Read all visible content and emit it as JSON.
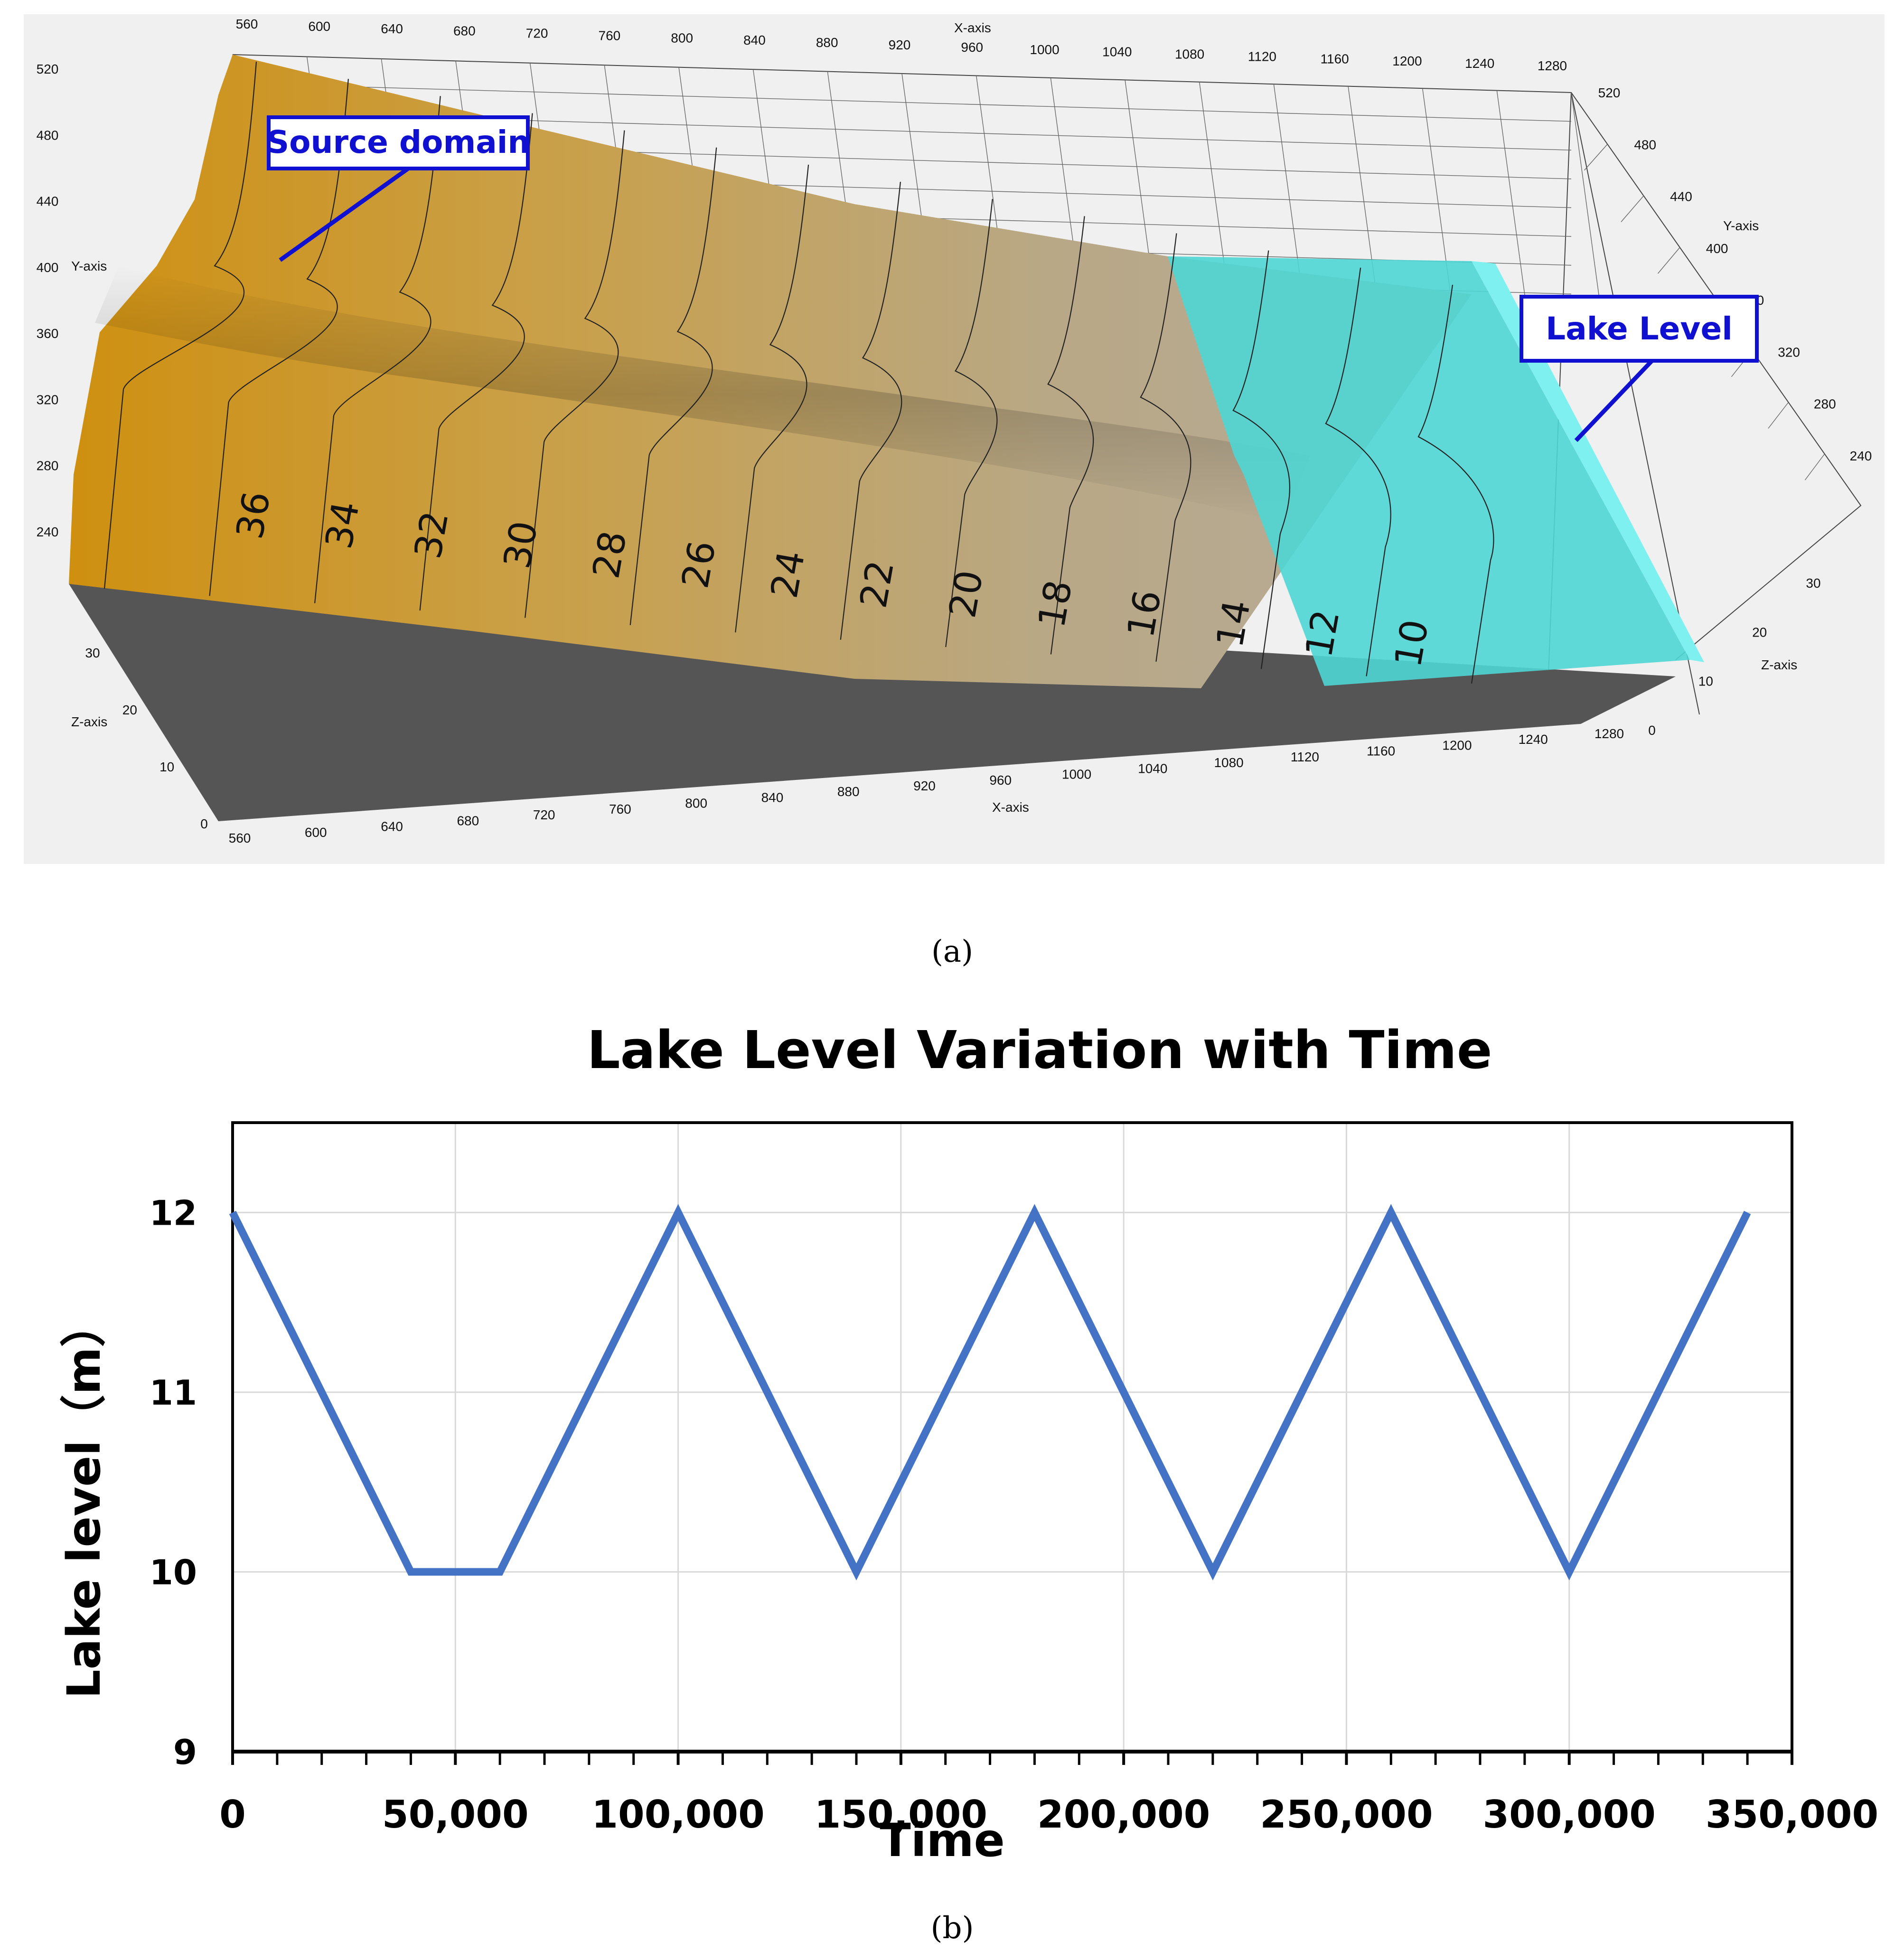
{
  "panel_a": {
    "caption": "(a)",
    "x_axis_label": "X-axis",
    "y_axis_label": "Y-axis",
    "z_axis_label": "Z-axis",
    "x_ticks": [
      "560",
      "600",
      "640",
      "680",
      "720",
      "760",
      "800",
      "840",
      "880",
      "920",
      "960",
      "1000",
      "1040",
      "1080",
      "1120",
      "1160",
      "1200",
      "1240",
      "1280"
    ],
    "y_ticks": [
      "240",
      "280",
      "320",
      "360",
      "400",
      "440",
      "480",
      "520"
    ],
    "z_ticks": [
      "0",
      "10",
      "20",
      "30"
    ],
    "contour_labels": [
      "36",
      "34",
      "32",
      "30",
      "28",
      "26",
      "24",
      "22",
      "20",
      "18",
      "16",
      "14",
      "12",
      "10"
    ],
    "source_callout": "Source domain",
    "lake_callout": "Lake Level",
    "colors": {
      "terrain": "#c9a04a",
      "lake": "#4fd6d4",
      "side": "#555555",
      "callout": "#1010d0"
    }
  },
  "panel_b": {
    "caption": "(b)"
  },
  "chart_data": {
    "type": "line",
    "title": "Lake Level Variation with Time",
    "xlabel": "Time",
    "ylabel": "Lake level（m）",
    "xlim": [
      0,
      350000
    ],
    "ylim": [
      9,
      12.5
    ],
    "x_ticks": [
      0,
      50000,
      100000,
      150000,
      200000,
      250000,
      300000,
      350000
    ],
    "x_tick_labels": [
      "0",
      "50,000",
      "100,000",
      "150,000",
      "200,000",
      "250,000",
      "300,000",
      "350,000"
    ],
    "y_ticks": [
      9,
      10,
      11,
      12
    ],
    "y_tick_labels": [
      "9",
      "10",
      "11",
      "12"
    ],
    "grid": true,
    "legend": "none",
    "series": [
      {
        "color": "#4472c4",
        "x": [
          0,
          40000,
          60000,
          100000,
          140000,
          180000,
          220000,
          260000,
          300000,
          340000
        ],
        "y": [
          12,
          10,
          10,
          12,
          10,
          12,
          10,
          12,
          10,
          12
        ]
      }
    ]
  }
}
